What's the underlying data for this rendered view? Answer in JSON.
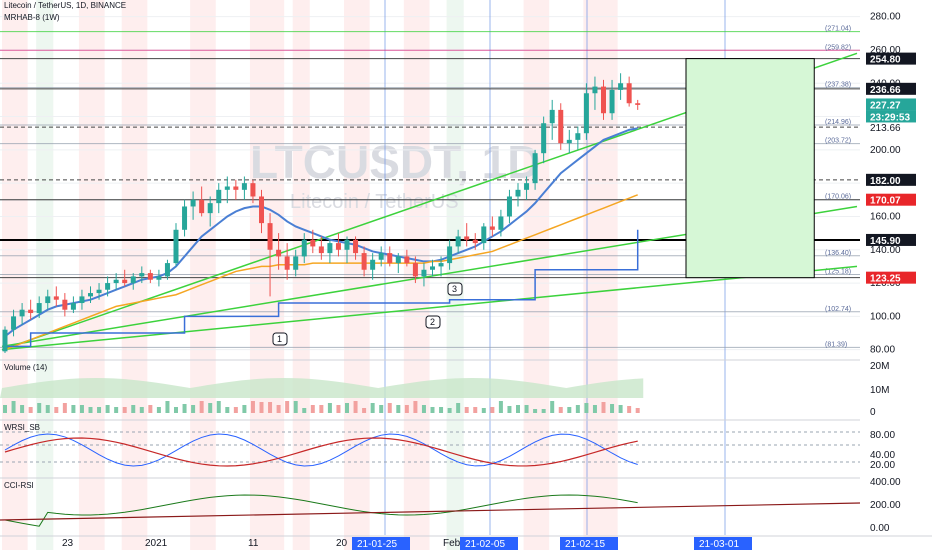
{
  "header": {
    "line1": "Litecoin / TetherUS, 1D, BINANCE",
    "line2": "MRHAB-8 (1W)"
  },
  "watermark": {
    "symbol": "LTCUSDT, 1D",
    "name": "Litecoin / TetherUS"
  },
  "colors": {
    "up": "#26a69a",
    "down": "#ef5350",
    "green_line": "#3cd23c",
    "blue_line": "#4a7fd4",
    "orange_line": "#f5a623",
    "dark_red": "#8b1a1a",
    "price_tag_green": "#26a69a",
    "price_tag_red": "#e8262a",
    "price_tag_black": "#131722",
    "projection_box": "#d6f7d6",
    "fib_line": "#7d8cff"
  },
  "chart_data": [
    {
      "type": "line",
      "title": "",
      "pane": "price",
      "y_axis": {
        "ylim": [
          75,
          290
        ],
        "ticks": [
          "280.00",
          "260.00",
          "240.00",
          "220.00",
          "200.00",
          "180.00",
          "160.00",
          "140.00",
          "120.00",
          "100.00",
          "80.00"
        ]
      },
      "x_axis": {
        "ticks": [
          "23",
          "2021",
          "11",
          "20",
          "Feb",
          "15"
        ],
        "highlighted_dates": [
          "21-01-25",
          "21-02-05",
          "21-02-15",
          "21-03-01"
        ]
      },
      "candles": {
        "start": "2020-12-14",
        "ohlc": [
          [
            79,
            94,
            78,
            92
          ],
          [
            92,
            104,
            88,
            100
          ],
          [
            100,
            108,
            95,
            104
          ],
          [
            104,
            110,
            98,
            102
          ],
          [
            102,
            112,
            99,
            108
          ],
          [
            108,
            116,
            104,
            112
          ],
          [
            112,
            118,
            106,
            110
          ],
          [
            110,
            114,
            100,
            104
          ],
          [
            104,
            112,
            102,
            108
          ],
          [
            108,
            116,
            104,
            112
          ],
          [
            112,
            118,
            108,
            114
          ],
          [
            114,
            120,
            110,
            116
          ],
          [
            116,
            124,
            112,
            120
          ],
          [
            120,
            126,
            116,
            122
          ],
          [
            122,
            128,
            118,
            120
          ],
          [
            120,
            126,
            116,
            124
          ],
          [
            124,
            130,
            120,
            126
          ],
          [
            126,
            128,
            120,
            122
          ],
          [
            122,
            128,
            118,
            124
          ],
          [
            124,
            134,
            122,
            132
          ],
          [
            132,
            156,
            130,
            152
          ],
          [
            152,
            170,
            148,
            166
          ],
          [
            166,
            175,
            158,
            170
          ],
          [
            170,
            178,
            160,
            162
          ],
          [
            162,
            172,
            154,
            168
          ],
          [
            168,
            180,
            162,
            176
          ],
          [
            176,
            184,
            168,
            178
          ],
          [
            178,
            182,
            170,
            176
          ],
          [
            176,
            184,
            170,
            180
          ],
          [
            180,
            182,
            168,
            172
          ],
          [
            172,
            176,
            150,
            156
          ],
          [
            156,
            162,
            112,
            140
          ],
          [
            140,
            150,
            128,
            136
          ],
          [
            136,
            144,
            122,
            128
          ],
          [
            128,
            140,
            124,
            136
          ],
          [
            136,
            150,
            132,
            146
          ],
          [
            146,
            152,
            138,
            142
          ],
          [
            142,
            148,
            134,
            138
          ],
          [
            138,
            146,
            132,
            144
          ],
          [
            144,
            150,
            136,
            140
          ],
          [
            140,
            148,
            132,
            146
          ],
          [
            146,
            148,
            134,
            138
          ],
          [
            138,
            142,
            124,
            128
          ],
          [
            128,
            138,
            122,
            134
          ],
          [
            134,
            142,
            130,
            138
          ],
          [
            138,
            142,
            130,
            132
          ],
          [
            132,
            138,
            126,
            136
          ],
          [
            136,
            140,
            130,
            132
          ],
          [
            132,
            136,
            120,
            124
          ],
          [
            124,
            132,
            118,
            128
          ],
          [
            128,
            134,
            124,
            130
          ],
          [
            130,
            136,
            124,
            132
          ],
          [
            132,
            146,
            128,
            142
          ],
          [
            142,
            152,
            138,
            148
          ],
          [
            148,
            156,
            142,
            146
          ],
          [
            146,
            150,
            140,
            144
          ],
          [
            144,
            156,
            140,
            154
          ],
          [
            154,
            160,
            148,
            152
          ],
          [
            152,
            164,
            148,
            160
          ],
          [
            160,
            176,
            156,
            172
          ],
          [
            172,
            180,
            166,
            176
          ],
          [
            176,
            184,
            170,
            180
          ],
          [
            180,
            200,
            176,
            198
          ],
          [
            198,
            220,
            192,
            216
          ],
          [
            216,
            230,
            206,
            224
          ],
          [
            224,
            228,
            200,
            204
          ],
          [
            204,
            212,
            198,
            206
          ],
          [
            206,
            214,
            200,
            210
          ],
          [
            210,
            240,
            206,
            234
          ],
          [
            234,
            244,
            224,
            238
          ],
          [
            238,
            242,
            218,
            222
          ],
          [
            222,
            242,
            218,
            236
          ],
          [
            236,
            246,
            230,
            240
          ],
          [
            240,
            244,
            226,
            228
          ],
          [
            228,
            230,
            224,
            227
          ]
        ]
      },
      "series": [
        {
          "name": "",
          "values": [
            88,
            92,
            95,
            98,
            101,
            104,
            106,
            107,
            108,
            109,
            110,
            112,
            114,
            116,
            118,
            120,
            122,
            123,
            124,
            126,
            130,
            136,
            142,
            148,
            152,
            156,
            160,
            163,
            165,
            166,
            166,
            164,
            161,
            157,
            154,
            152,
            150,
            148,
            146,
            145,
            144,
            143,
            141,
            139,
            138,
            137,
            136,
            135,
            134,
            133,
            133,
            134,
            136,
            138,
            140,
            142,
            145,
            148,
            151,
            155,
            159,
            163,
            168,
            174,
            180,
            186,
            190,
            194,
            198,
            202,
            206,
            208,
            210,
            212,
            213
          ]
        },
        {
          "name": "",
          "values": [
            80,
            82,
            84,
            86,
            88,
            90,
            92,
            94,
            96,
            98,
            100,
            102,
            104,
            106,
            107,
            108,
            109,
            110,
            111,
            112,
            113,
            115,
            117,
            119,
            121,
            123,
            125,
            127,
            128,
            129,
            130,
            130,
            131,
            131,
            131,
            131,
            132,
            132,
            132,
            132,
            132,
            132,
            132,
            132,
            132,
            132,
            132,
            132,
            132,
            132,
            133,
            133,
            134,
            135,
            136,
            137,
            138,
            139,
            141,
            143,
            145,
            147,
            149,
            151,
            153,
            155,
            157,
            159,
            161,
            163,
            165,
            167,
            169,
            171,
            173
          ]
        },
        {
          "name": "",
          "values": [
            82,
            82,
            82,
            90,
            90,
            90,
            90,
            90,
            90,
            90,
            90,
            90,
            90,
            90,
            90,
            90,
            90,
            90,
            90,
            90,
            90,
            100,
            100,
            100,
            100,
            100,
            100,
            100,
            100,
            100,
            100,
            100,
            108,
            108,
            108,
            108,
            108,
            108,
            108,
            108,
            108,
            108,
            108,
            108,
            108,
            108,
            108,
            108,
            108,
            108,
            108,
            108,
            110,
            110,
            110,
            110,
            110,
            110,
            110,
            110,
            110,
            110,
            128,
            128,
            128,
            128,
            128,
            128,
            128,
            128,
            128,
            128,
            128,
            128,
            152
          ]
        }
      ],
      "horizontal_levels": [
        {
          "value": "271.04",
          "kind": "fib"
        },
        {
          "value": "259.82",
          "kind": "fib"
        },
        {
          "value": "254.80",
          "kind": "level"
        },
        {
          "value": "237.38",
          "kind": "fib"
        },
        {
          "value": "236.66",
          "kind": "level"
        },
        {
          "value": "214.96",
          "kind": "fib"
        },
        {
          "value": "213.66",
          "kind": "level"
        },
        {
          "value": "203.72",
          "kind": "fib"
        },
        {
          "value": "182.00",
          "kind": "level"
        },
        {
          "value": "170.06",
          "kind": "fib"
        },
        {
          "value": "170.07",
          "kind": "level"
        },
        {
          "value": "145.90",
          "kind": "level"
        },
        {
          "value": "136.40",
          "kind": "fib"
        },
        {
          "value": "125.18",
          "kind": "fib"
        },
        {
          "value": "123.25",
          "kind": "level"
        },
        {
          "value": "102.74",
          "kind": "fib"
        },
        {
          "value": "81.39",
          "kind": "fib"
        }
      ],
      "fib_labels": [
        "(271.04)",
        "(259.82)",
        "(237.38)",
        "(214.96)",
        "(203.72)",
        "(170.06)",
        "(136.40)",
        "(125.18)",
        "(102.74)",
        "(81.39)"
      ],
      "price_tags": [
        {
          "text": "254.80",
          "value": 254.8,
          "style": "black"
        },
        {
          "text": "236.66",
          "value": 236.66,
          "style": "black"
        },
        {
          "text": "227.27",
          "value": 227.27,
          "style": "green"
        },
        {
          "text": "23:29:53",
          "value": 220,
          "style": "green"
        },
        {
          "text": "213.66",
          "value": 213.66,
          "style": "plain"
        },
        {
          "text": "182.00",
          "value": 182.0,
          "style": "black"
        },
        {
          "text": "170.07",
          "value": 170.07,
          "style": "red"
        },
        {
          "text": "145.90",
          "value": 145.9,
          "style": "black"
        },
        {
          "text": "123.25",
          "value": 123.25,
          "style": "red"
        }
      ],
      "projection_box": {
        "from": "2021-03-04",
        "to": "2021-03-19",
        "top": 254.8,
        "bottom": 123.25
      },
      "trendlines": [
        {
          "from": [
            "2020-12-14",
            80
          ],
          "to": [
            "2021-03-24",
            258
          ]
        },
        {
          "from": [
            "2020-12-14",
            82
          ],
          "to": [
            "2021-03-24",
            166
          ]
        },
        {
          "from": [
            "2020-12-14",
            80
          ],
          "to": [
            "2021-03-24",
            130
          ]
        }
      ],
      "wave_markers": [
        "1",
        "2",
        "3"
      ]
    },
    {
      "type": "area",
      "pane": "volume",
      "title": "Volume (14)",
      "y_axis": {
        "ticks": [
          "20M",
          "10M",
          "0"
        ]
      }
    },
    {
      "type": "line",
      "pane": "oscillator",
      "title": "WRSI_SB",
      "y_axis": {
        "ticks": [
          "80.00",
          "40.00",
          "20.00"
        ]
      }
    },
    {
      "type": "line",
      "pane": "cci",
      "title": "CCI-RSI",
      "y_axis": {
        "ticks": [
          "400.00",
          "200.00",
          "0.00"
        ]
      }
    }
  ]
}
